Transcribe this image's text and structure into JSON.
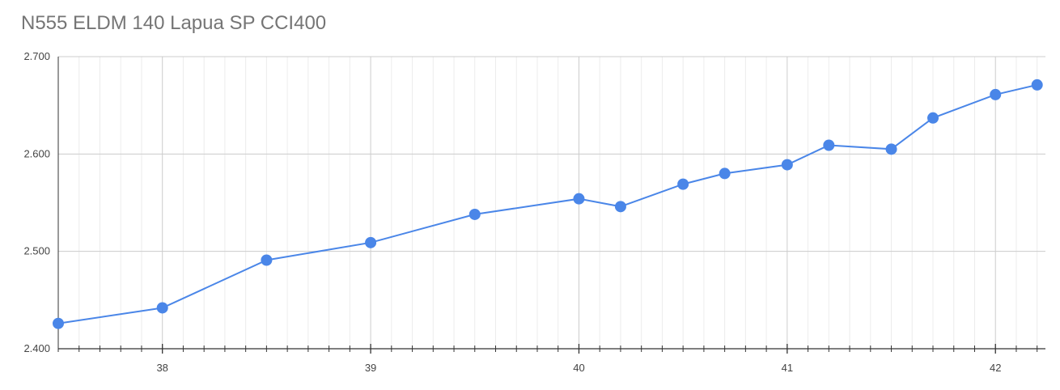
{
  "chart_data": {
    "type": "line",
    "title": "N555 ELDM 140 Lapua SP CCI400",
    "xlabel": "",
    "ylabel": "",
    "xlim": [
      37.5,
      42.24
    ],
    "ylim": [
      2.4,
      2.7
    ],
    "x_ticks": [
      38,
      39,
      40,
      41,
      42
    ],
    "x_tick_labels": [
      "38",
      "39",
      "40",
      "41",
      "42"
    ],
    "y_ticks": [
      2.4,
      2.5,
      2.6,
      2.7
    ],
    "y_tick_labels": [
      "2.400",
      "2.500",
      "2.600",
      "2.700"
    ],
    "grid": true,
    "legend": "none",
    "series": [
      {
        "color": "#4a86e8",
        "x": [
          37.5,
          38.0,
          38.5,
          39.0,
          39.5,
          40.0,
          40.2,
          40.5,
          40.7,
          41.0,
          41.2,
          41.5,
          41.7,
          42.0,
          42.2
        ],
        "y": [
          2.426,
          2.442,
          2.491,
          2.509,
          2.538,
          2.554,
          2.546,
          2.569,
          2.58,
          2.589,
          2.609,
          2.605,
          2.637,
          2.661,
          2.671
        ]
      }
    ]
  }
}
